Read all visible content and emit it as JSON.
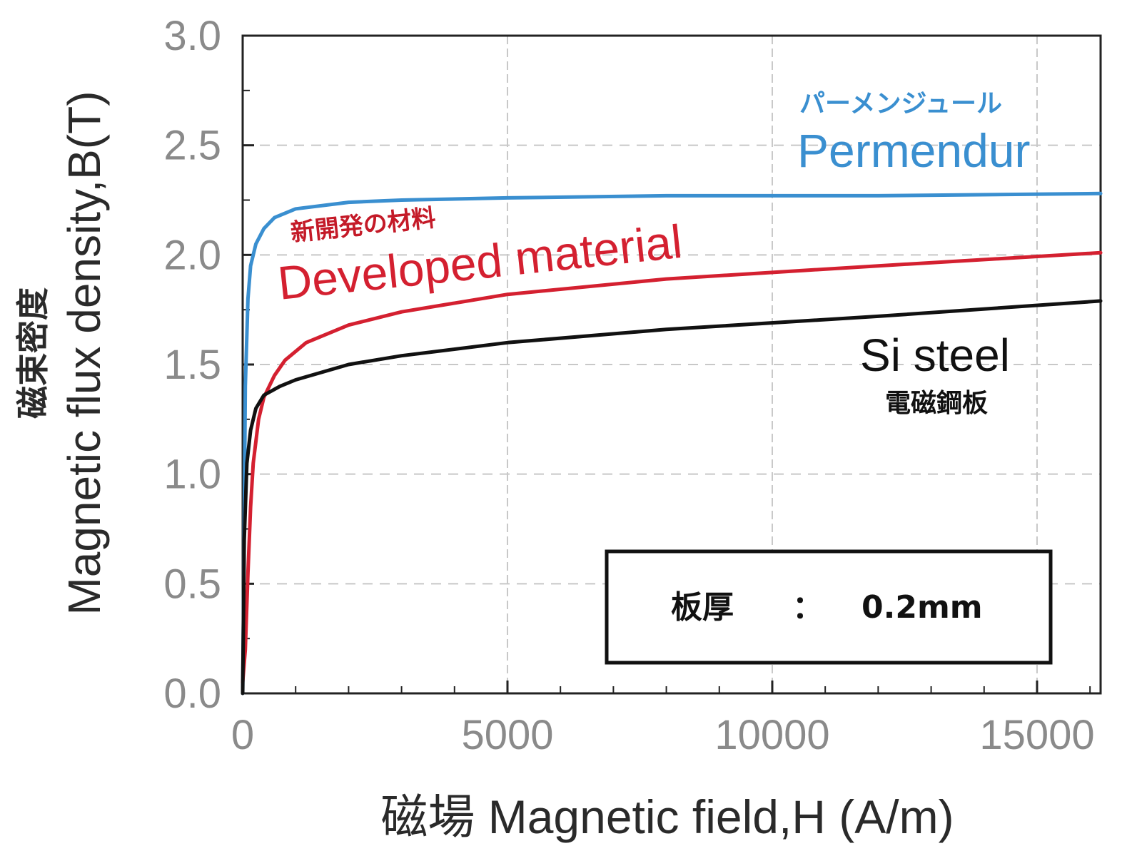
{
  "chart_data": {
    "type": "line",
    "xlabel": "磁場 Magnetic field,H (A/m)",
    "ylabel_jp": "磁束密度",
    "ylabel": "Magnetic flux density,B(T)",
    "xlim": [
      0,
      16200
    ],
    "ylim": [
      0,
      3.0
    ],
    "x_ticks": [
      "0",
      "5000",
      "10000",
      "15000"
    ],
    "y_ticks": [
      "0.0",
      "0.5",
      "1.0",
      "1.5",
      "2.0",
      "2.5",
      "3.0"
    ],
    "grid": true,
    "series": [
      {
        "name": "Permendur",
        "name_jp": "パーメンジュール",
        "color": "#3a8fd0",
        "x": [
          0,
          20,
          50,
          100,
          150,
          250,
          400,
          600,
          1000,
          2000,
          3000,
          5000,
          8000,
          12000,
          16200
        ],
        "y": [
          0.0,
          0.5,
          1.4,
          1.8,
          1.95,
          2.05,
          2.12,
          2.17,
          2.21,
          2.24,
          2.25,
          2.26,
          2.27,
          2.27,
          2.28
        ]
      },
      {
        "name": "Developed material",
        "name_jp": "新開発の材料",
        "color": "#d42030",
        "x": [
          0,
          50,
          100,
          150,
          200,
          300,
          400,
          600,
          800,
          1200,
          2000,
          3000,
          5000,
          8000,
          12000,
          16200
        ],
        "y": [
          0.05,
          0.2,
          0.55,
          0.85,
          1.05,
          1.25,
          1.35,
          1.45,
          1.52,
          1.6,
          1.68,
          1.74,
          1.82,
          1.89,
          1.95,
          2.01
        ]
      },
      {
        "name": "Si steel",
        "name_jp": "電磁鋼板",
        "color": "#111111",
        "x": [
          0,
          30,
          80,
          150,
          250,
          400,
          700,
          1000,
          2000,
          3000,
          5000,
          8000,
          12000,
          16200
        ],
        "y": [
          0.0,
          0.7,
          1.05,
          1.2,
          1.3,
          1.36,
          1.4,
          1.43,
          1.5,
          1.54,
          1.6,
          1.66,
          1.72,
          1.79
        ]
      }
    ],
    "annotation": {
      "label": "板厚",
      "separator": "：",
      "value": "0.2mm"
    }
  }
}
